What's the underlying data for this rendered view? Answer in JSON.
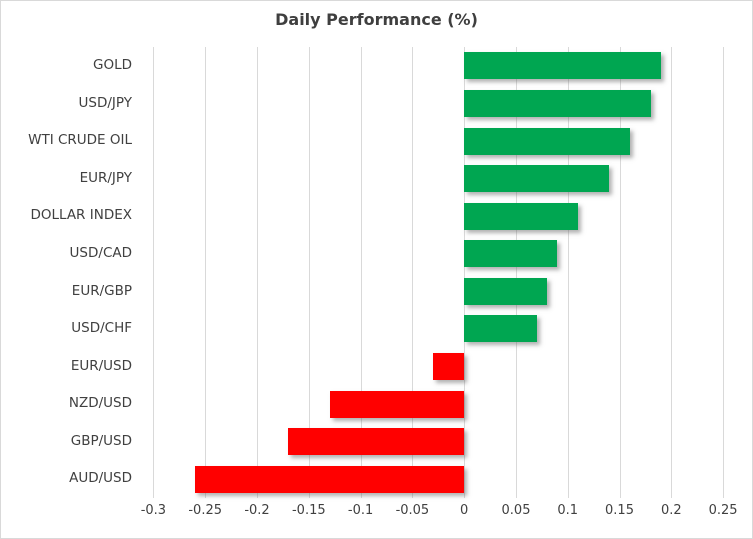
{
  "chart_data": {
    "type": "bar",
    "orientation": "horizontal",
    "title": "Daily Performance (%)",
    "categories": [
      "GOLD",
      "USD/JPY",
      "WTI CRUDE OIL",
      "EUR/JPY",
      "DOLLAR INDEX",
      "USD/CAD",
      "EUR/GBP",
      "USD/CHF",
      "EUR/USD",
      "NZD/USD",
      "GBP/USD",
      "AUD/USD"
    ],
    "values": [
      0.19,
      0.18,
      0.16,
      0.14,
      0.11,
      0.09,
      0.08,
      0.07,
      -0.03,
      -0.13,
      -0.17,
      -0.26
    ],
    "xlabel": "",
    "ylabel": "",
    "xlim": [
      -0.312,
      0.275
    ],
    "xticks": [
      -0.3,
      -0.25,
      -0.2,
      -0.15,
      -0.1,
      -0.05,
      0,
      0.05,
      0.1,
      0.15,
      0.2,
      0.25
    ],
    "xtick_labels": [
      "-0.3",
      "-0.25",
      "-0.2",
      "-0.15",
      "-0.1",
      "-0.05",
      "0",
      "0.05",
      "0.1",
      "0.15",
      "0.2",
      "0.25"
    ],
    "grid": true,
    "legend": false,
    "positive_color": "#00A651",
    "negative_color": "#FF0000",
    "gridline_color": "#D9D9D9",
    "border_color": "#D9D9D9",
    "title_color": "#3F3F3F",
    "label_color": "#404040"
  }
}
